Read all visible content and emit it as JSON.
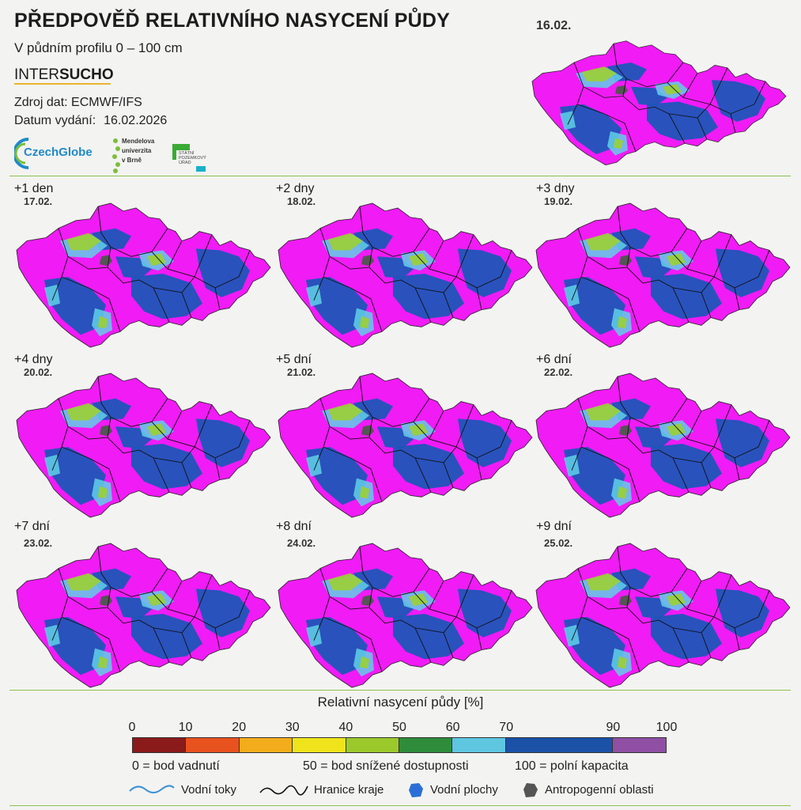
{
  "header": {
    "title": "PŘEDPOVĚĎ RELATIVNÍHO NASYCENÍ PŮDY",
    "subtitle": "V půdním profilu 0 – 100 cm",
    "brand_inter": "INTER",
    "brand_sucho": "SUCHO",
    "source_label": "Zdroj dat: ECMWF/IFS",
    "issued_label": "Datum vydání:",
    "issued_value": "16.02.2026"
  },
  "logos": {
    "czechglobe": "CzechGlobe",
    "mendel_lines": [
      "Mendelova",
      "univerzita",
      "v Brně"
    ],
    "spu_lines": [
      "STÁTNÍ",
      "POZEMKOVÝ",
      "ÚŘAD"
    ]
  },
  "panels": [
    {
      "label": "",
      "date": "16.02."
    },
    {
      "label": "+1 den",
      "date": "17.02."
    },
    {
      "label": "+2 dny",
      "date": "18.02."
    },
    {
      "label": "+3 dny",
      "date": "19.02."
    },
    {
      "label": "+4 dny",
      "date": "20.02."
    },
    {
      "label": "+5 dní",
      "date": "21.02."
    },
    {
      "label": "+6 dní",
      "date": "22.02."
    },
    {
      "label": "+7 dní",
      "date": "23.02."
    },
    {
      "label": "+8 dní",
      "date": "24.02."
    },
    {
      "label": "+9 dní",
      "date": "25.02."
    }
  ],
  "legend": {
    "title": "Relativní nasycení půdy [%]",
    "ticks": [
      "0",
      "10",
      "20",
      "30",
      "40",
      "50",
      "60",
      "70",
      "90",
      "100"
    ],
    "classes": [
      {
        "from": 0,
        "to": 10,
        "color": "#8b1a1a"
      },
      {
        "from": 10,
        "to": 20,
        "color": "#e8521e"
      },
      {
        "from": 20,
        "to": 30,
        "color": "#f3ad1c"
      },
      {
        "from": 30,
        "to": 40,
        "color": "#efe31c"
      },
      {
        "from": 40,
        "to": 50,
        "color": "#9bc92c"
      },
      {
        "from": 50,
        "to": 60,
        "color": "#2f8c3a"
      },
      {
        "from": 60,
        "to": 70,
        "color": "#5fc6e0"
      },
      {
        "from": 70,
        "to": 90,
        "color": "#1b52a8"
      },
      {
        "from": 90,
        "to": 100,
        "color": "#8f4fa3"
      }
    ],
    "note_wilting": "0 = bod vadnutí",
    "note_reduced": "50 = bod snížené dostupnosti",
    "note_capacity": "100 = polní kapacita",
    "key_streams": "Vodní toky",
    "key_borders": "Hranice kraje",
    "key_water": "Vodní plochy",
    "key_urban": "Antropogenní oblasti"
  },
  "colors": {
    "map_magenta": "#f01bf5",
    "map_blue": "#1e55b8",
    "map_cyan": "#5fd0e8",
    "map_green": "#9bd033",
    "divider": "#8cc152"
  }
}
